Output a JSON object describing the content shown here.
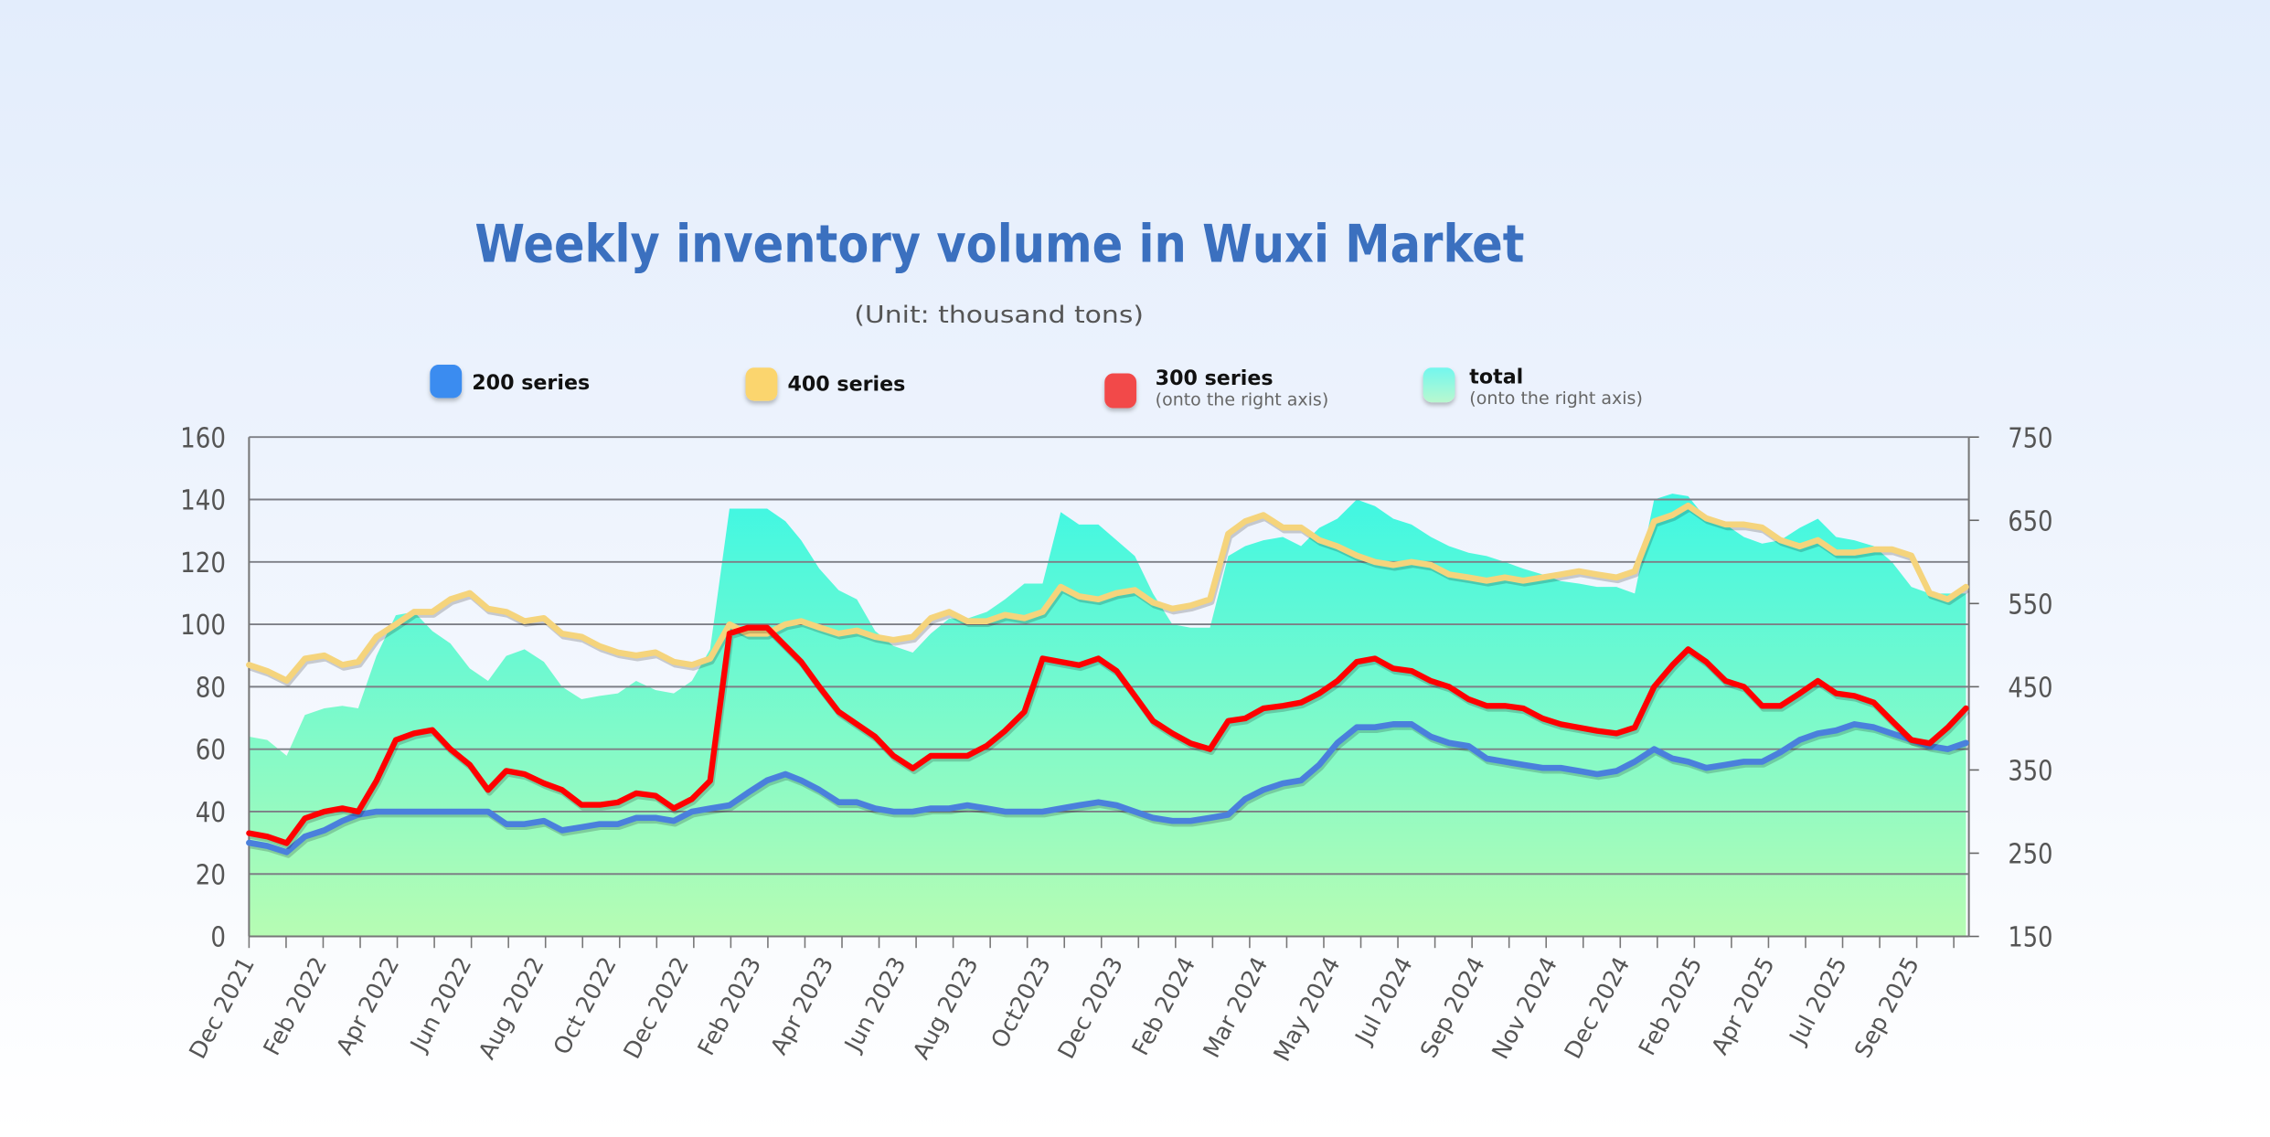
{
  "chart_data": {
    "type": "line",
    "title": "Weekly inventory volume in Wuxi Market",
    "subtitle": "(Unit: thousand tons)",
    "xlabel": "",
    "ylabel": "",
    "ylim": [
      0,
      160
    ],
    "y2lim": [
      150,
      750
    ],
    "yticks": [
      "0",
      "20",
      "40",
      "60",
      "80",
      "100",
      "120",
      "140",
      "160"
    ],
    "y2ticks": [
      "150",
      "250",
      "350",
      "450",
      "550",
      "650",
      "750"
    ],
    "xtick_labels": [
      "Dec 2021",
      "Feb 2022",
      "Apr 2022",
      "Jun 2022",
      "Aug 2022",
      "Oct 2022",
      "Dec 2022",
      "Feb 2023",
      "Apr 2023",
      "Jun 2023",
      "Aug 2023",
      "Oct2023",
      "Dec 2023",
      "Feb 2024",
      "Mar 2024",
      "May 2024",
      "Jul 2024",
      "Sep 2024",
      "Nov 2024",
      "Dec 2024",
      "Feb 2025",
      "Apr 2025",
      "Jul 2025",
      "Sep 2025"
    ],
    "grid": true,
    "legend_placement": "top",
    "x": [
      "2021-12-01",
      "2021-12-16",
      "2022-01-01",
      "2022-01-16",
      "2022-02-01",
      "2022-02-16",
      "2022-03-01",
      "2022-03-16",
      "2022-04-01",
      "2022-04-16",
      "2022-05-01",
      "2022-05-16",
      "2022-06-01",
      "2022-06-16",
      "2022-07-01",
      "2022-07-16",
      "2022-08-01",
      "2022-08-16",
      "2022-09-01",
      "2022-09-16",
      "2022-10-01",
      "2022-10-16",
      "2022-11-01",
      "2022-11-16",
      "2022-12-01",
      "2022-12-16",
      "2023-01-01",
      "2023-01-16",
      "2023-02-01",
      "2023-02-16",
      "2023-03-01",
      "2023-03-16",
      "2023-04-01",
      "2023-04-16",
      "2023-05-01",
      "2023-05-16",
      "2023-06-01",
      "2023-06-16",
      "2023-07-01",
      "2023-07-16",
      "2023-08-01",
      "2023-08-16",
      "2023-09-01",
      "2023-09-16",
      "2023-10-01",
      "2023-10-16",
      "2023-11-01",
      "2023-11-16",
      "2023-12-01",
      "2023-12-16",
      "2024-01-01",
      "2024-01-16",
      "2024-02-01",
      "2024-02-16",
      "2024-03-01",
      "2024-03-16",
      "2024-04-01",
      "2024-04-16",
      "2024-05-01",
      "2024-05-16",
      "2024-06-01",
      "2024-06-16",
      "2024-07-01",
      "2024-07-16",
      "2024-08-01",
      "2024-08-16",
      "2024-09-01",
      "2024-09-16",
      "2024-10-01",
      "2024-10-16",
      "2024-11-01",
      "2024-11-16",
      "2024-12-01",
      "2024-12-16",
      "2025-01-01",
      "2025-01-16",
      "2025-02-01",
      "2025-02-16",
      "2025-03-01",
      "2025-03-16",
      "2025-04-01",
      "2025-04-16",
      "2025-05-01",
      "2025-05-16",
      "2025-06-01",
      "2025-06-16",
      "2025-07-01",
      "2025-07-16",
      "2025-08-01",
      "2025-08-16",
      "2025-09-01",
      "2025-09-16",
      "2025-10-01",
      "2025-10-16"
    ],
    "series": [
      {
        "name": "total",
        "note": "(onto the right axis)",
        "axis": "right",
        "kind": "area",
        "color": "#4ff5e2",
        "values": [
          390,
          386,
          367,
          416,
          424,
          427,
          424,
          487,
          536,
          540,
          517,
          502,
          472,
          457,
          487,
          495,
          480,
          450,
          435,
          439,
          442,
          457,
          446,
          442,
          457,
          495,
          664,
          664,
          664,
          649,
          626,
          592,
          566,
          555,
          517,
          499,
          491,
          514,
          532,
          532,
          540,
          555,
          574,
          574,
          660,
          645,
          645,
          626,
          607,
          562,
          525,
          521,
          521,
          607,
          619,
          626,
          630,
          619,
          641,
          652,
          675,
          667,
          652,
          645,
          630,
          619,
          611,
          607,
          600,
          592,
          585,
          577,
          574,
          570,
          570,
          562,
          675,
          682,
          679,
          652,
          645,
          630,
          622,
          626,
          641,
          652,
          630,
          626,
          619,
          600,
          570,
          562,
          562,
          562
        ]
      },
      {
        "name": "200 series",
        "axis": "left",
        "kind": "line",
        "color": "#4a80dc",
        "values": [
          30,
          29,
          27,
          32,
          34,
          37,
          39,
          40,
          40,
          40,
          40,
          40,
          40,
          40,
          36,
          36,
          37,
          34,
          35,
          36,
          36,
          38,
          38,
          37,
          40,
          41,
          42,
          46,
          50,
          52,
          50,
          47,
          43,
          43,
          41,
          40,
          40,
          41,
          41,
          42,
          41,
          40,
          40,
          40,
          41,
          42,
          43,
          42,
          40,
          38,
          37,
          37,
          38,
          39,
          44,
          47,
          49,
          50,
          55,
          62,
          67,
          67,
          68,
          68,
          64,
          62,
          61,
          57,
          56,
          55,
          54,
          54,
          53,
          52,
          53,
          56,
          60,
          57,
          56,
          54,
          55,
          56,
          56,
          59,
          63,
          65,
          66,
          68,
          67,
          65,
          63,
          61,
          60,
          62
        ]
      },
      {
        "name": "400 series",
        "axis": "left",
        "kind": "line",
        "color": "#f5d47c",
        "values": [
          87,
          85,
          82,
          89,
          90,
          87,
          88,
          96,
          100,
          104,
          104,
          108,
          110,
          105,
          104,
          101,
          102,
          97,
          96,
          93,
          91,
          90,
          91,
          88,
          87,
          89,
          100,
          97,
          97,
          100,
          101,
          99,
          97,
          98,
          96,
          95,
          96,
          102,
          104,
          101,
          101,
          103,
          102,
          104,
          112,
          109,
          108,
          110,
          111,
          107,
          105,
          106,
          108,
          129,
          133,
          135,
          131,
          131,
          127,
          125,
          122,
          120,
          119,
          120,
          119,
          116,
          115,
          114,
          115,
          114,
          115,
          116,
          117,
          116,
          115,
          117,
          133,
          135,
          138,
          134,
          132,
          132,
          131,
          127,
          125,
          127,
          123,
          123,
          124,
          124,
          122,
          110,
          108,
          112
        ]
      },
      {
        "name": "300 series",
        "note": "(onto the right axis)",
        "axis": "right",
        "kind": "line",
        "color": "#ff0000",
        "values": [
          274,
          270,
          262,
          292,
          300,
          304,
          300,
          337,
          386,
          394,
          398,
          375,
          356,
          326,
          349,
          345,
          334,
          326,
          308,
          308,
          311,
          322,
          319,
          304,
          315,
          337,
          514,
          521,
          521,
          499,
          480,
          450,
          420,
          405,
          390,
          367,
          352,
          367,
          367,
          367,
          379,
          397,
          420,
          484,
          480,
          476,
          484,
          469,
          439,
          409,
          394,
          382,
          375,
          409,
          412,
          424,
          427,
          431,
          442,
          457,
          480,
          484,
          472,
          469,
          457,
          450,
          435,
          427,
          427,
          424,
          412,
          405,
          401,
          397,
          394,
          401,
          450,
          476,
          495,
          480,
          457,
          450,
          427,
          427,
          442,
          457,
          442,
          439,
          431,
          409,
          386,
          382,
          401,
          424
        ]
      }
    ]
  },
  "legend": [
    {
      "label": "200 series",
      "note": "",
      "color": "#3a8cf0"
    },
    {
      "label": "400 series",
      "note": "",
      "color": "#fbd56e"
    },
    {
      "label": "300 series",
      "note": "(onto the right axis)",
      "color": "#f24a4a"
    },
    {
      "label": "total",
      "note": "(onto the right axis)",
      "color": "#7af5e8"
    }
  ]
}
